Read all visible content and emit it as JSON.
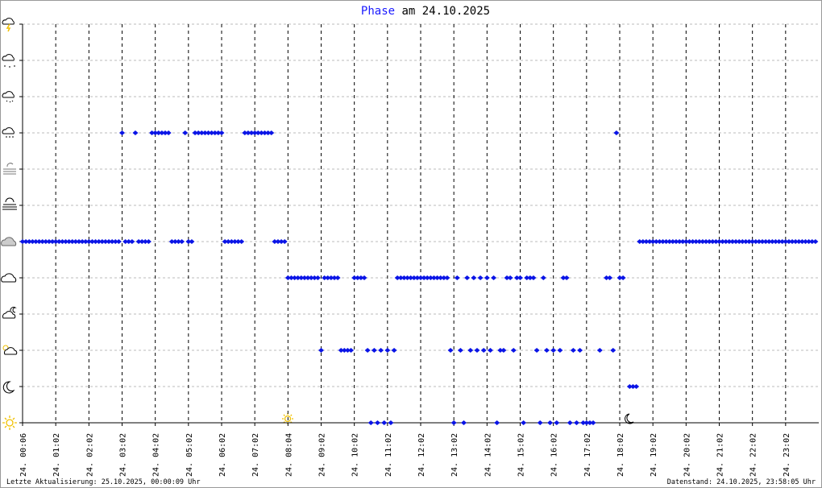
{
  "chart_data": {
    "type": "scatter",
    "title_series": "Phase",
    "title_rest": "am 24.10.2025",
    "footer_left": "Letzte Aktualisierung: 25.10.2025, 00:00:09 Uhr",
    "footer_right": "Datenstand: 24.10.2025, 23:58:05 Uhr",
    "color": "#0a14e6",
    "grid": true,
    "xlim": [
      0,
      24
    ],
    "ylim": [
      0,
      11
    ],
    "yticks": [
      0,
      1,
      2,
      3,
      4,
      5,
      6,
      7,
      8,
      9,
      10,
      11
    ],
    "xticks": [
      {
        "value": 0,
        "label": "24. 00:06"
      },
      {
        "value": 1,
        "label": "24. 01:02"
      },
      {
        "value": 2,
        "label": "24. 02:02"
      },
      {
        "value": 3,
        "label": "24. 03:02"
      },
      {
        "value": 4,
        "label": "24. 04:02"
      },
      {
        "value": 5,
        "label": "24. 05:02"
      },
      {
        "value": 6,
        "label": "24. 06:02"
      },
      {
        "value": 7,
        "label": "24. 07:02"
      },
      {
        "value": 8,
        "label": "24. 08:04"
      },
      {
        "value": 9,
        "label": "24. 09:02"
      },
      {
        "value": 10,
        "label": "24. 10:02"
      },
      {
        "value": 11,
        "label": "24. 11:02"
      },
      {
        "value": 12,
        "label": "24. 12:02"
      },
      {
        "value": 13,
        "label": "24. 13:02"
      },
      {
        "value": 14,
        "label": "24. 14:02"
      },
      {
        "value": 15,
        "label": "24. 15:02"
      },
      {
        "value": 16,
        "label": "24. 16:02"
      },
      {
        "value": 17,
        "label": "24. 17:02"
      },
      {
        "value": 18,
        "label": "24. 18:02"
      },
      {
        "value": 19,
        "label": "24. 19:02"
      },
      {
        "value": 20,
        "label": "24. 20:02"
      },
      {
        "value": 21,
        "label": "24. 21:02"
      },
      {
        "value": 22,
        "label": "24. 22:02"
      },
      {
        "value": 23,
        "label": "24. 23:02"
      }
    ],
    "x": [
      0,
      0.1,
      0.2,
      0.3,
      0.4,
      0.5,
      0.6,
      0.7,
      0.8,
      0.9,
      1,
      1.1,
      1.2,
      1.3,
      1.4,
      1.5,
      1.6,
      1.7,
      1.8,
      1.9,
      2,
      2.1,
      2.2,
      2.3,
      2.4,
      2.5,
      2.6,
      2.7,
      2.8,
      2.9,
      3,
      3.1,
      3.2,
      3.3,
      3.4,
      3.5,
      3.6,
      3.7,
      3.8,
      3.9,
      4,
      4.1,
      4.2,
      4.3,
      4.4,
      4.5,
      4.6,
      4.7,
      4.8,
      4.9,
      5,
      5.1,
      5.2,
      5.3,
      5.4,
      5.5,
      5.6,
      5.7,
      5.8,
      5.9,
      6,
      6.1,
      6.2,
      6.3,
      6.4,
      6.5,
      6.6,
      6.7,
      6.8,
      6.9,
      7,
      7.1,
      7.2,
      7.3,
      7.4,
      7.5,
      7.6,
      7.7,
      7.8,
      7.9,
      8,
      8.1,
      8.2,
      8.3,
      8.4,
      8.5,
      8.6,
      8.7,
      8.8,
      8.9,
      9,
      9.1,
      9.2,
      9.3,
      9.4,
      9.5,
      9.6,
      9.7,
      9.8,
      9.9,
      10,
      10.1,
      10.2,
      10.3,
      10.4,
      10.5,
      10.6,
      10.7,
      10.8,
      10.9,
      11,
      11.1,
      11.2,
      11.3,
      11.4,
      11.5,
      11.6,
      11.7,
      11.8,
      11.9,
      12,
      12.1,
      12.2,
      12.3,
      12.4,
      12.5,
      12.6,
      12.7,
      12.8,
      12.9,
      13,
      13.1,
      13.2,
      13.3,
      13.4,
      13.5,
      13.6,
      13.7,
      13.8,
      13.9,
      14,
      14.1,
      14.2,
      14.3,
      14.4,
      14.5,
      14.6,
      14.7,
      14.8,
      14.9,
      15,
      15.1,
      15.2,
      15.3,
      15.4,
      15.5,
      15.6,
      15.7,
      15.8,
      15.9,
      16,
      16.1,
      16.2,
      16.3,
      16.4,
      16.5,
      16.6,
      16.7,
      16.8,
      16.9,
      17,
      17.1,
      17.2,
      17.3,
      17.4,
      17.5,
      17.6,
      17.7,
      17.8,
      17.9,
      18,
      18.1,
      18.2,
      18.3,
      18.4,
      18.5,
      18.6,
      18.7,
      18.8,
      18.9,
      19,
      19.1,
      19.2,
      19.3,
      19.4,
      19.5,
      19.6,
      19.7,
      19.8,
      19.9,
      20,
      20.1,
      20.2,
      20.3,
      20.4,
      20.5,
      20.6,
      20.7,
      20.8,
      20.9,
      21,
      21.1,
      21.2,
      21.3,
      21.4,
      21.5,
      21.6,
      21.7,
      21.8,
      21.9,
      22,
      22.1,
      22.2,
      22.3,
      22.4,
      22.5,
      22.6,
      22.7,
      22.8,
      22.9,
      23,
      23.1,
      23.2,
      23.3,
      23.4,
      23.5,
      23.6,
      23.7,
      23.8,
      23.9
    ],
    "values": [
      5,
      5,
      5,
      5,
      5,
      5,
      5,
      5,
      5,
      5,
      5,
      5,
      5,
      5,
      5,
      5,
      5,
      5,
      5,
      5,
      5,
      5,
      5,
      5,
      5,
      5,
      5,
      5,
      5,
      5,
      8,
      5,
      5,
      5,
      8,
      5,
      5,
      5,
      5,
      8,
      8,
      8,
      8,
      8,
      8,
      5,
      5,
      5,
      5,
      8,
      5,
      5,
      8,
      8,
      8,
      8,
      8,
      8,
      8,
      8,
      8,
      5,
      5,
      5,
      5,
      5,
      5,
      8,
      8,
      8,
      8,
      8,
      8,
      8,
      8,
      8,
      5,
      5,
      5,
      5,
      4,
      4,
      4,
      4,
      4,
      4,
      4,
      4,
      4,
      4,
      2,
      4,
      4,
      4,
      4,
      4,
      2,
      2,
      2,
      2,
      4,
      4,
      4,
      4,
      2,
      0,
      2,
      0,
      2,
      0,
      2,
      0,
      2,
      4,
      4,
      4,
      4,
      4,
      4,
      4,
      4,
      4,
      4,
      4,
      4,
      4,
      4,
      4,
      4,
      2,
      0,
      4,
      2,
      0,
      4,
      2,
      4,
      2,
      4,
      2,
      4,
      2,
      4,
      0,
      2,
      2,
      4,
      4,
      2,
      4,
      4,
      0,
      4,
      4,
      4,
      2,
      0,
      4,
      2,
      0,
      2,
      0,
      2,
      4,
      4,
      0,
      2,
      0,
      2,
      0,
      0,
      0,
      0,
      null,
      2,
      null,
      4,
      4,
      2,
      8,
      4,
      4,
      null,
      1,
      1,
      1,
      5,
      5,
      5,
      5,
      5,
      5,
      5,
      5,
      5,
      5,
      5,
      5,
      5,
      5,
      5,
      5,
      5,
      5,
      5,
      5,
      5,
      5,
      5,
      5,
      5,
      5,
      5,
      5,
      5,
      5,
      5,
      5,
      5,
      5,
      5,
      5,
      5,
      5,
      5,
      5,
      5,
      5,
      5,
      5,
      5,
      5,
      5,
      5,
      5,
      5,
      5,
      5,
      5,
      5
    ]
  }
}
